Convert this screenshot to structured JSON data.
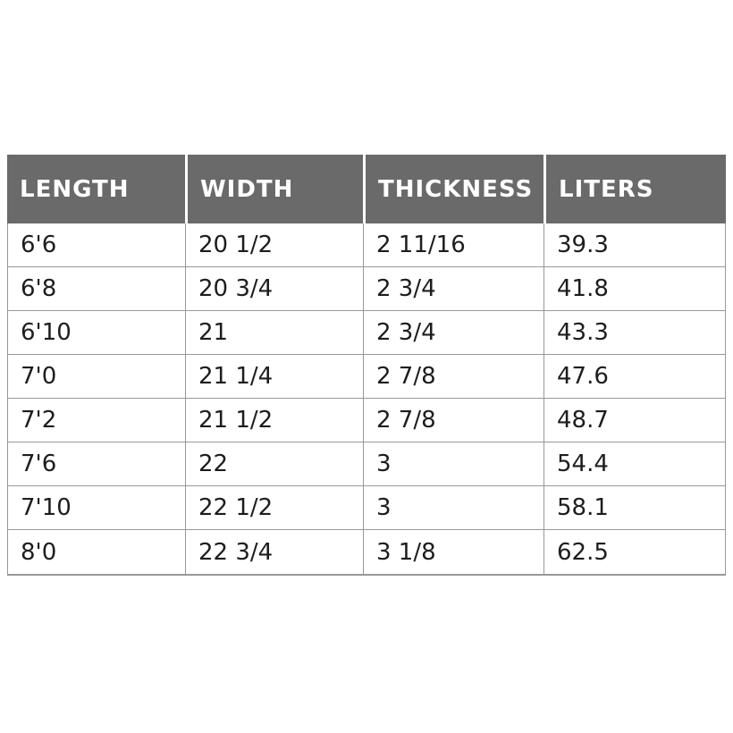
{
  "chart_data": {
    "type": "table",
    "title": "",
    "columns": [
      "LENGTH",
      "WIDTH",
      "THICKNESS",
      "LITERS"
    ],
    "rows": [
      [
        "6'6",
        "20 1/2",
        "2 11/16",
        "39.3"
      ],
      [
        "6'8",
        "20 3/4",
        "2 3/4",
        "41.8"
      ],
      [
        "6'10",
        "21",
        "2 3/4",
        "43.3"
      ],
      [
        "7'0",
        "21 1/4",
        "2 7/8",
        "47.6"
      ],
      [
        "7'2",
        "21 1/2",
        "2 7/8",
        "48.7"
      ],
      [
        "7'6",
        "22",
        "3",
        "54.4"
      ],
      [
        "7'10",
        "22 1/2",
        "3",
        "58.1"
      ],
      [
        "8'0",
        "22 3/4",
        "3 1/8",
        "62.5"
      ]
    ],
    "colors": {
      "header_bg": "#6a6a6a",
      "header_text": "#ffffff",
      "body_text": "#1d1d1d",
      "grid_line": "#989898",
      "page_bg": "#ffffff"
    },
    "layout": {
      "grid": "on",
      "header_position": "top"
    }
  }
}
